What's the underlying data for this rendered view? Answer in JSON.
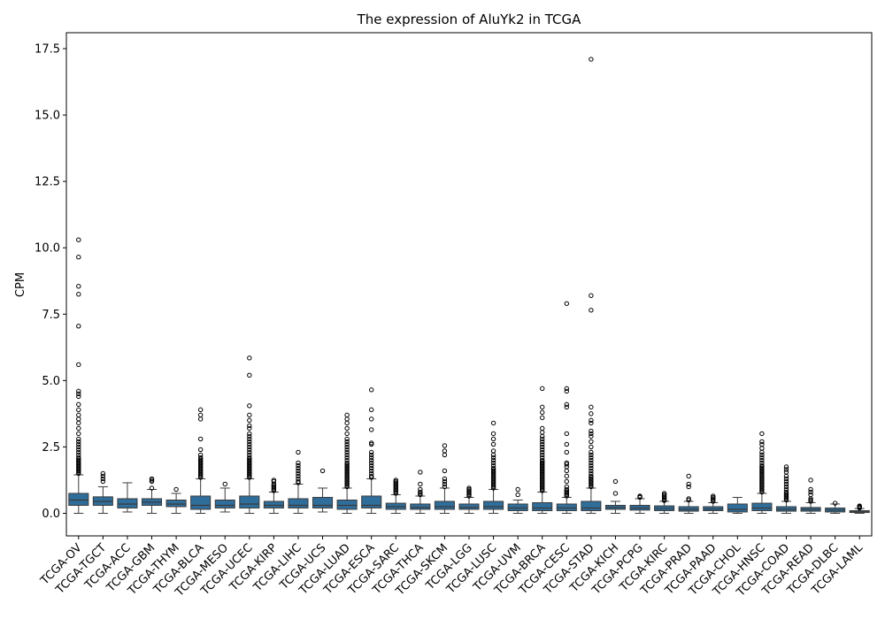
{
  "chart_data": {
    "type": "box",
    "title": "The expression of AluYk2 in TCGA",
    "xlabel": "",
    "ylabel": "CPM",
    "ylim": [
      -0.85,
      18.1
    ],
    "yticks": [
      0.0,
      2.5,
      5.0,
      7.5,
      10.0,
      12.5,
      15.0,
      17.5
    ],
    "ytick_labels": [
      "0.0",
      "2.5",
      "5.0",
      "7.5",
      "10.0",
      "12.5",
      "15.0",
      "17.5"
    ],
    "grid": false,
    "legend": "none",
    "box_color": "#2f6d9a",
    "categories": [
      "TCGA-OV",
      "TCGA-TGCT",
      "TCGA-ACC",
      "TCGA-GBM",
      "TCGA-THYM",
      "TCGA-BLCA",
      "TCGA-MESO",
      "TCGA-UCEC",
      "TCGA-KIRP",
      "TCGA-LIHC",
      "TCGA-UCS",
      "TCGA-LUAD",
      "TCGA-ESCA",
      "TCGA-SARC",
      "TCGA-THCA",
      "TCGA-SKCM",
      "TCGA-LGG",
      "TCGA-LUSC",
      "TCGA-UVM",
      "TCGA-BRCA",
      "TCGA-CESC",
      "TCGA-STAD",
      "TCGA-KICH",
      "TCGA-PCPG",
      "TCGA-KIRC",
      "TCGA-PRAD",
      "TCGA-PAAD",
      "TCGA-CHOL",
      "TCGA-HNSC",
      "TCGA-COAD",
      "TCGA-READ",
      "TCGA-DLBC",
      "TCGA-LAML"
    ],
    "boxes": [
      {
        "whislo": 0.0,
        "q1": 0.3,
        "med": 0.5,
        "q3": 0.75,
        "whishi": 1.45,
        "fliers": [
          1.5,
          1.55,
          1.6,
          1.65,
          1.7,
          1.75,
          1.8,
          1.85,
          1.9,
          1.95,
          2.0,
          2.05,
          2.1,
          2.2,
          2.3,
          2.4,
          2.5,
          2.6,
          2.7,
          2.8,
          3.0,
          3.2,
          3.4,
          3.55,
          3.7,
          3.9,
          4.1,
          4.4,
          4.5,
          4.6,
          5.6,
          7.05,
          8.25,
          8.55,
          9.65,
          10.3
        ]
      },
      {
        "whislo": 0.0,
        "q1": 0.3,
        "med": 0.45,
        "q3": 0.62,
        "whishi": 1.0,
        "fliers": [
          1.2,
          1.3,
          1.4,
          1.5
        ]
      },
      {
        "whislo": 0.05,
        "q1": 0.2,
        "med": 0.35,
        "q3": 0.55,
        "whishi": 1.15,
        "fliers": []
      },
      {
        "whislo": 0.0,
        "q1": 0.3,
        "med": 0.42,
        "q3": 0.55,
        "whishi": 0.9,
        "fliers": [
          0.95,
          1.2,
          1.25,
          1.3
        ]
      },
      {
        "whislo": 0.0,
        "q1": 0.25,
        "med": 0.35,
        "q3": 0.5,
        "whishi": 0.75,
        "fliers": [
          0.9
        ]
      },
      {
        "whislo": 0.0,
        "q1": 0.15,
        "med": 0.3,
        "q3": 0.65,
        "whishi": 1.3,
        "fliers": [
          1.35,
          1.4,
          1.45,
          1.5,
          1.55,
          1.6,
          1.65,
          1.7,
          1.75,
          1.8,
          1.85,
          1.9,
          1.95,
          2.0,
          2.05,
          2.1,
          2.2,
          2.4,
          2.8,
          3.55,
          3.7,
          3.9
        ]
      },
      {
        "whislo": 0.05,
        "q1": 0.2,
        "med": 0.3,
        "q3": 0.5,
        "whishi": 0.95,
        "fliers": [
          1.1
        ]
      },
      {
        "whislo": 0.0,
        "q1": 0.2,
        "med": 0.35,
        "q3": 0.65,
        "whishi": 1.3,
        "fliers": [
          1.35,
          1.4,
          1.45,
          1.5,
          1.55,
          1.6,
          1.65,
          1.7,
          1.75,
          1.8,
          1.85,
          1.9,
          1.95,
          2.0,
          2.05,
          2.1,
          2.2,
          2.3,
          2.4,
          2.5,
          2.6,
          2.7,
          2.8,
          2.9,
          3.0,
          3.2,
          3.3,
          3.5,
          3.7,
          4.05,
          5.2,
          5.85
        ]
      },
      {
        "whislo": 0.0,
        "q1": 0.2,
        "med": 0.3,
        "q3": 0.45,
        "whishi": 0.8,
        "fliers": [
          0.85,
          0.9,
          0.95,
          1.0,
          1.05,
          1.1,
          1.2,
          1.25
        ]
      },
      {
        "whislo": 0.0,
        "q1": 0.2,
        "med": 0.3,
        "q3": 0.55,
        "whishi": 1.1,
        "fliers": [
          1.15,
          1.2,
          1.3,
          1.4,
          1.5,
          1.6,
          1.7,
          1.8,
          1.9,
          2.3
        ]
      },
      {
        "whislo": 0.05,
        "q1": 0.2,
        "med": 0.3,
        "q3": 0.6,
        "whishi": 0.95,
        "fliers": [
          1.6
        ]
      },
      {
        "whislo": 0.0,
        "q1": 0.15,
        "med": 0.3,
        "q3": 0.5,
        "whishi": 0.95,
        "fliers": [
          1.0,
          1.05,
          1.1,
          1.15,
          1.2,
          1.25,
          1.3,
          1.35,
          1.4,
          1.45,
          1.5,
          1.55,
          1.6,
          1.65,
          1.7,
          1.75,
          1.8,
          1.85,
          1.9,
          2.0,
          2.1,
          2.2,
          2.3,
          2.4,
          2.5,
          2.6,
          2.7,
          2.8,
          3.0,
          3.2,
          3.4,
          3.55,
          3.7
        ]
      },
      {
        "whislo": 0.0,
        "q1": 0.2,
        "med": 0.3,
        "q3": 0.65,
        "whishi": 1.3,
        "fliers": [
          1.35,
          1.4,
          1.5,
          1.6,
          1.7,
          1.8,
          1.9,
          2.0,
          2.1,
          2.2,
          2.3,
          2.6,
          2.65,
          3.15,
          3.55,
          3.9,
          4.65
        ]
      },
      {
        "whislo": 0.0,
        "q1": 0.15,
        "med": 0.25,
        "q3": 0.38,
        "whishi": 0.7,
        "fliers": [
          0.75,
          0.8,
          0.85,
          0.9,
          0.95,
          1.0,
          1.05,
          1.1,
          1.15,
          1.2,
          1.25
        ]
      },
      {
        "whislo": 0.0,
        "q1": 0.15,
        "med": 0.22,
        "q3": 0.35,
        "whishi": 0.65,
        "fliers": [
          0.7,
          0.75,
          0.8,
          0.9,
          1.1,
          1.55
        ]
      },
      {
        "whislo": 0.0,
        "q1": 0.15,
        "med": 0.25,
        "q3": 0.45,
        "whishi": 0.95,
        "fliers": [
          1.0,
          1.1,
          1.2,
          1.3,
          1.6,
          2.2,
          2.35,
          2.55
        ]
      },
      {
        "whislo": 0.0,
        "q1": 0.15,
        "med": 0.22,
        "q3": 0.35,
        "whishi": 0.6,
        "fliers": [
          0.65,
          0.7,
          0.75,
          0.8,
          0.85,
          0.9,
          0.95
        ]
      },
      {
        "whislo": 0.0,
        "q1": 0.15,
        "med": 0.25,
        "q3": 0.45,
        "whishi": 0.9,
        "fliers": [
          0.95,
          1.0,
          1.05,
          1.1,
          1.15,
          1.2,
          1.25,
          1.3,
          1.35,
          1.4,
          1.45,
          1.5,
          1.55,
          1.6,
          1.65,
          1.7,
          1.8,
          1.9,
          2.0,
          2.1,
          2.2,
          2.35,
          2.6,
          2.8,
          3.0,
          3.4
        ]
      },
      {
        "whislo": 0.0,
        "q1": 0.1,
        "med": 0.2,
        "q3": 0.35,
        "whishi": 0.5,
        "fliers": [
          0.7,
          0.9
        ]
      },
      {
        "whislo": 0.0,
        "q1": 0.1,
        "med": 0.2,
        "q3": 0.4,
        "whishi": 0.8,
        "fliers": [
          0.85,
          0.9,
          0.95,
          1.0,
          1.05,
          1.1,
          1.15,
          1.2,
          1.25,
          1.3,
          1.35,
          1.4,
          1.45,
          1.5,
          1.55,
          1.6,
          1.65,
          1.7,
          1.75,
          1.8,
          1.85,
          1.9,
          1.95,
          2.0,
          2.1,
          2.2,
          2.3,
          2.4,
          2.5,
          2.6,
          2.7,
          2.8,
          2.9,
          3.05,
          3.2,
          3.6,
          3.8,
          4.0,
          4.7
        ]
      },
      {
        "whislo": 0.0,
        "q1": 0.1,
        "med": 0.2,
        "q3": 0.35,
        "whishi": 0.6,
        "fliers": [
          0.65,
          0.7,
          0.75,
          0.8,
          0.85,
          0.9,
          1.0,
          1.2,
          1.4,
          1.6,
          1.75,
          1.85,
          1.9,
          2.3,
          2.6,
          3.0,
          4.0,
          4.1,
          4.6,
          4.7,
          7.9
        ]
      },
      {
        "whislo": 0.0,
        "q1": 0.1,
        "med": 0.2,
        "q3": 0.45,
        "whishi": 0.95,
        "fliers": [
          1.0,
          1.05,
          1.1,
          1.15,
          1.2,
          1.25,
          1.3,
          1.35,
          1.4,
          1.5,
          1.6,
          1.7,
          1.8,
          1.9,
          2.0,
          2.1,
          2.2,
          2.3,
          2.5,
          2.7,
          2.9,
          3.0,
          3.1,
          3.4,
          3.5,
          3.75,
          4.0,
          7.65,
          8.2,
          17.1
        ]
      },
      {
        "whislo": 0.0,
        "q1": 0.15,
        "med": 0.22,
        "q3": 0.3,
        "whishi": 0.45,
        "fliers": [
          0.75,
          1.2
        ]
      },
      {
        "whislo": 0.0,
        "q1": 0.12,
        "med": 0.2,
        "q3": 0.3,
        "whishi": 0.55,
        "fliers": [
          0.6,
          0.62,
          0.65
        ]
      },
      {
        "whislo": 0.0,
        "q1": 0.1,
        "med": 0.18,
        "q3": 0.28,
        "whishi": 0.45,
        "fliers": [
          0.48,
          0.5,
          0.55,
          0.6,
          0.65,
          0.7,
          0.75
        ]
      },
      {
        "whislo": 0.0,
        "q1": 0.08,
        "med": 0.15,
        "q3": 0.25,
        "whishi": 0.45,
        "fliers": [
          0.5,
          0.55,
          1.0,
          1.1,
          1.4
        ]
      },
      {
        "whislo": 0.0,
        "q1": 0.1,
        "med": 0.16,
        "q3": 0.25,
        "whishi": 0.4,
        "fliers": [
          0.45,
          0.5,
          0.55,
          0.6,
          0.65
        ]
      },
      {
        "whislo": 0.0,
        "q1": 0.05,
        "med": 0.15,
        "q3": 0.35,
        "whishi": 0.6,
        "fliers": []
      },
      {
        "whislo": 0.0,
        "q1": 0.1,
        "med": 0.2,
        "q3": 0.38,
        "whishi": 0.75,
        "fliers": [
          0.8,
          0.85,
          0.9,
          0.95,
          1.0,
          1.05,
          1.1,
          1.15,
          1.2,
          1.25,
          1.3,
          1.35,
          1.4,
          1.45,
          1.5,
          1.55,
          1.6,
          1.65,
          1.7,
          1.75,
          1.8,
          1.9,
          2.0,
          2.1,
          2.2,
          2.3,
          2.45,
          2.6,
          2.7,
          3.0
        ]
      },
      {
        "whislo": 0.0,
        "q1": 0.08,
        "med": 0.15,
        "q3": 0.25,
        "whishi": 0.45,
        "fliers": [
          0.5,
          0.55,
          0.6,
          0.65,
          0.7,
          0.75,
          0.8,
          0.9,
          1.0,
          1.1,
          1.2,
          1.3,
          1.4,
          1.55,
          1.65,
          1.75
        ]
      },
      {
        "whislo": 0.0,
        "q1": 0.08,
        "med": 0.15,
        "q3": 0.22,
        "whishi": 0.4,
        "fliers": [
          0.45,
          0.5,
          0.55,
          0.7,
          0.8,
          0.9,
          1.25
        ]
      },
      {
        "whislo": 0.0,
        "q1": 0.05,
        "med": 0.12,
        "q3": 0.2,
        "whishi": 0.35,
        "fliers": [
          0.38
        ]
      },
      {
        "whislo": 0.0,
        "q1": 0.03,
        "med": 0.06,
        "q3": 0.1,
        "whishi": 0.18,
        "fliers": [
          0.2,
          0.22,
          0.25,
          0.28
        ]
      }
    ]
  }
}
